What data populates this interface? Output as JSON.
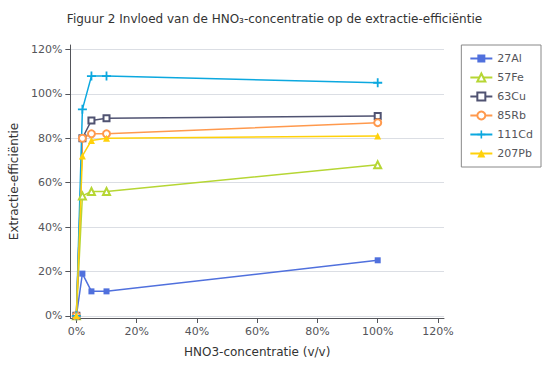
{
  "chart_data": {
    "type": "line",
    "title": "Figuur 2 Invloed van de HNO₃-concentratie op de extractie-efficiëntie",
    "xlabel": "HNO3-concentratie (v/v)",
    "ylabel": "Extractie-efficiëntie",
    "series": [
      {
        "name": "27Al",
        "marker": "square",
        "x": [
          0,
          2,
          5,
          10,
          100
        ],
        "values": [
          0.0,
          0.19,
          0.11,
          0.11,
          0.25
        ]
      },
      {
        "name": "57Fe",
        "marker": "triangle-open",
        "x": [
          0,
          2,
          5,
          10,
          100
        ],
        "values": [
          0.0,
          0.54,
          0.56,
          0.56,
          0.68
        ]
      },
      {
        "name": "63Cu",
        "marker": "square-open",
        "x": [
          0,
          2,
          5,
          10,
          100
        ],
        "values": [
          0.0,
          0.8,
          0.88,
          0.89,
          0.9
        ]
      },
      {
        "name": "85Rb",
        "marker": "circle-open",
        "x": [
          0,
          2,
          5,
          10,
          100
        ],
        "values": [
          0.0,
          0.8,
          0.82,
          0.82,
          0.87
        ]
      },
      {
        "name": "111Cd",
        "marker": "plus",
        "x": [
          0,
          2,
          5,
          10,
          100
        ],
        "values": [
          0.0,
          0.93,
          1.08,
          1.08,
          1.05
        ]
      },
      {
        "name": "207Pb",
        "marker": "triangle",
        "x": [
          0,
          2,
          5,
          10,
          100
        ],
        "values": [
          0.0,
          0.72,
          0.79,
          0.8,
          0.81
        ]
      }
    ],
    "xlim": [
      -2,
      122
    ],
    "xticks": [
      {
        "value": 0,
        "label": "0%"
      },
      {
        "value": 20,
        "label": "20%"
      },
      {
        "value": 40,
        "label": "40%"
      },
      {
        "value": 60,
        "label": "60%"
      },
      {
        "value": 80,
        "label": "80%"
      },
      {
        "value": 100,
        "label": "100%"
      },
      {
        "value": 120,
        "label": "120%"
      }
    ],
    "ylim": [
      -0.01,
      1.22
    ],
    "yticks": [
      {
        "value": 0.0,
        "label": "0%"
      },
      {
        "value": 0.2,
        "label": "20%"
      },
      {
        "value": 0.4,
        "label": "40%"
      },
      {
        "value": 0.6,
        "label": "60%"
      },
      {
        "value": 0.8,
        "label": "80%"
      },
      {
        "value": 1.0,
        "label": "100%"
      },
      {
        "value": 1.2,
        "label": "120%"
      }
    ],
    "grid": "y",
    "legend": "right"
  }
}
